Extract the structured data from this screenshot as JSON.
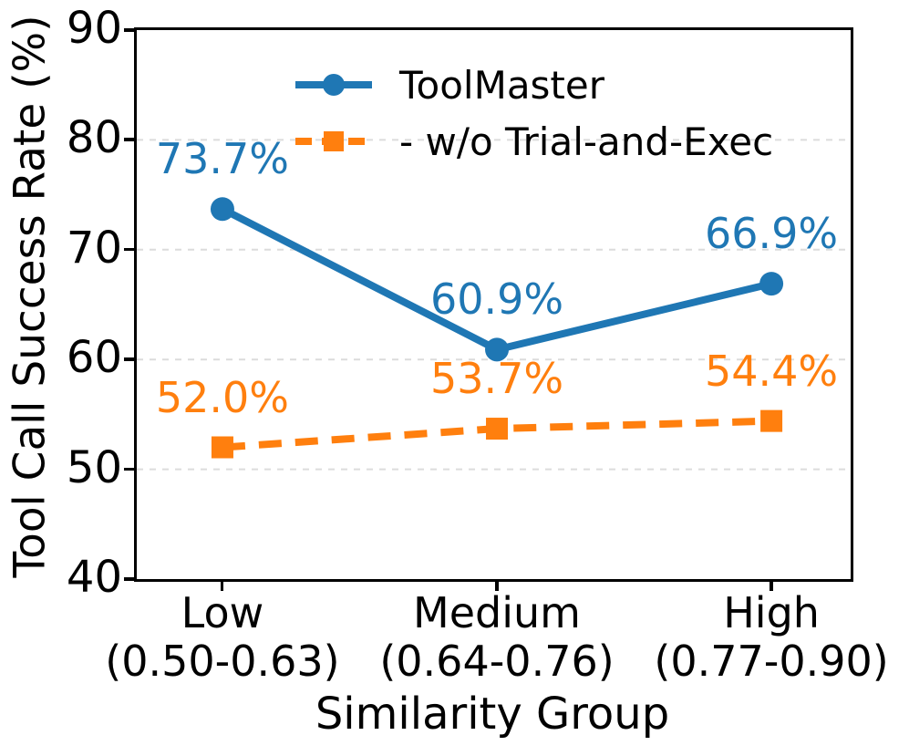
{
  "chart_data": {
    "type": "line",
    "title": "",
    "xlabel": "Similarity Group",
    "ylabel": "Tool Call Success Rate (%)",
    "categories": [
      {
        "label": "Low",
        "range": "(0.50-0.63)"
      },
      {
        "label": "Medium",
        "range": "(0.64-0.76)"
      },
      {
        "label": "High",
        "range": "(0.77-0.90)"
      }
    ],
    "ylim": [
      40,
      90
    ],
    "yticks": [
      40,
      50,
      60,
      70,
      80,
      90
    ],
    "grid": {
      "axis": "y",
      "style": "dashed",
      "color": "#dcdcdc"
    },
    "legend": {
      "position": "upper-center",
      "frame": false
    },
    "series": [
      {
        "name": "ToolMaster",
        "color": "#1f77b4",
        "line_style": "solid",
        "marker": "circle",
        "values": [
          73.7,
          60.9,
          66.9
        ],
        "point_labels": [
          "73.7%",
          "60.9%",
          "66.9%"
        ]
      },
      {
        "name": "- w/o Trial-and-Exec",
        "color": "#ff7f0e",
        "line_style": "dashed",
        "marker": "square",
        "values": [
          52.0,
          53.7,
          54.4
        ],
        "point_labels": [
          "52.0%",
          "53.7%",
          "54.4%"
        ]
      }
    ]
  }
}
